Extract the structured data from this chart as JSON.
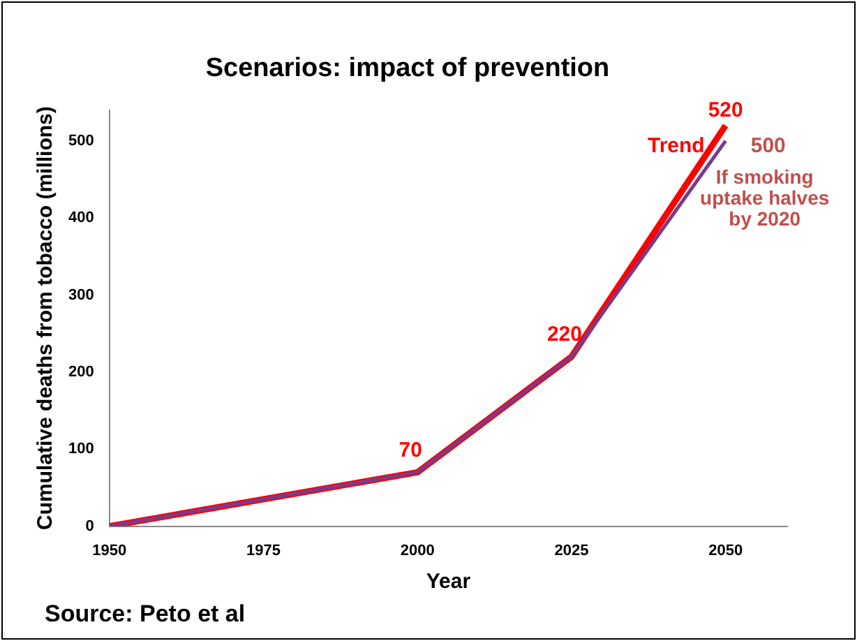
{
  "chart_data": {
    "type": "line",
    "title": "Scenarios: impact of prevention",
    "xlabel": "Year",
    "ylabel": "Cumulative deaths from tobacco (millions)",
    "x": [
      1950,
      2000,
      2025,
      2050
    ],
    "series": [
      {
        "name": "Trend",
        "color": "#ff0000",
        "values": [
          0,
          70,
          220,
          520
        ],
        "value_labels": [
          null,
          "70",
          "220",
          "520"
        ]
      },
      {
        "name": "If smoking uptake halves by 2020",
        "color": "#7a3a8c",
        "values": [
          0,
          70,
          220,
          500
        ],
        "value_labels": [
          null,
          null,
          null,
          "500"
        ]
      }
    ],
    "xlim": [
      1950,
      2060
    ],
    "xticks": [
      1950,
      1975,
      2000,
      2025,
      2050
    ],
    "ylim": [
      0,
      540
    ],
    "yticks": [
      0,
      100,
      200,
      300,
      400,
      500
    ],
    "grid": false,
    "legend": false,
    "marker": "none",
    "line_style": "solid",
    "annotations": [
      "Source: Peto et al"
    ]
  }
}
